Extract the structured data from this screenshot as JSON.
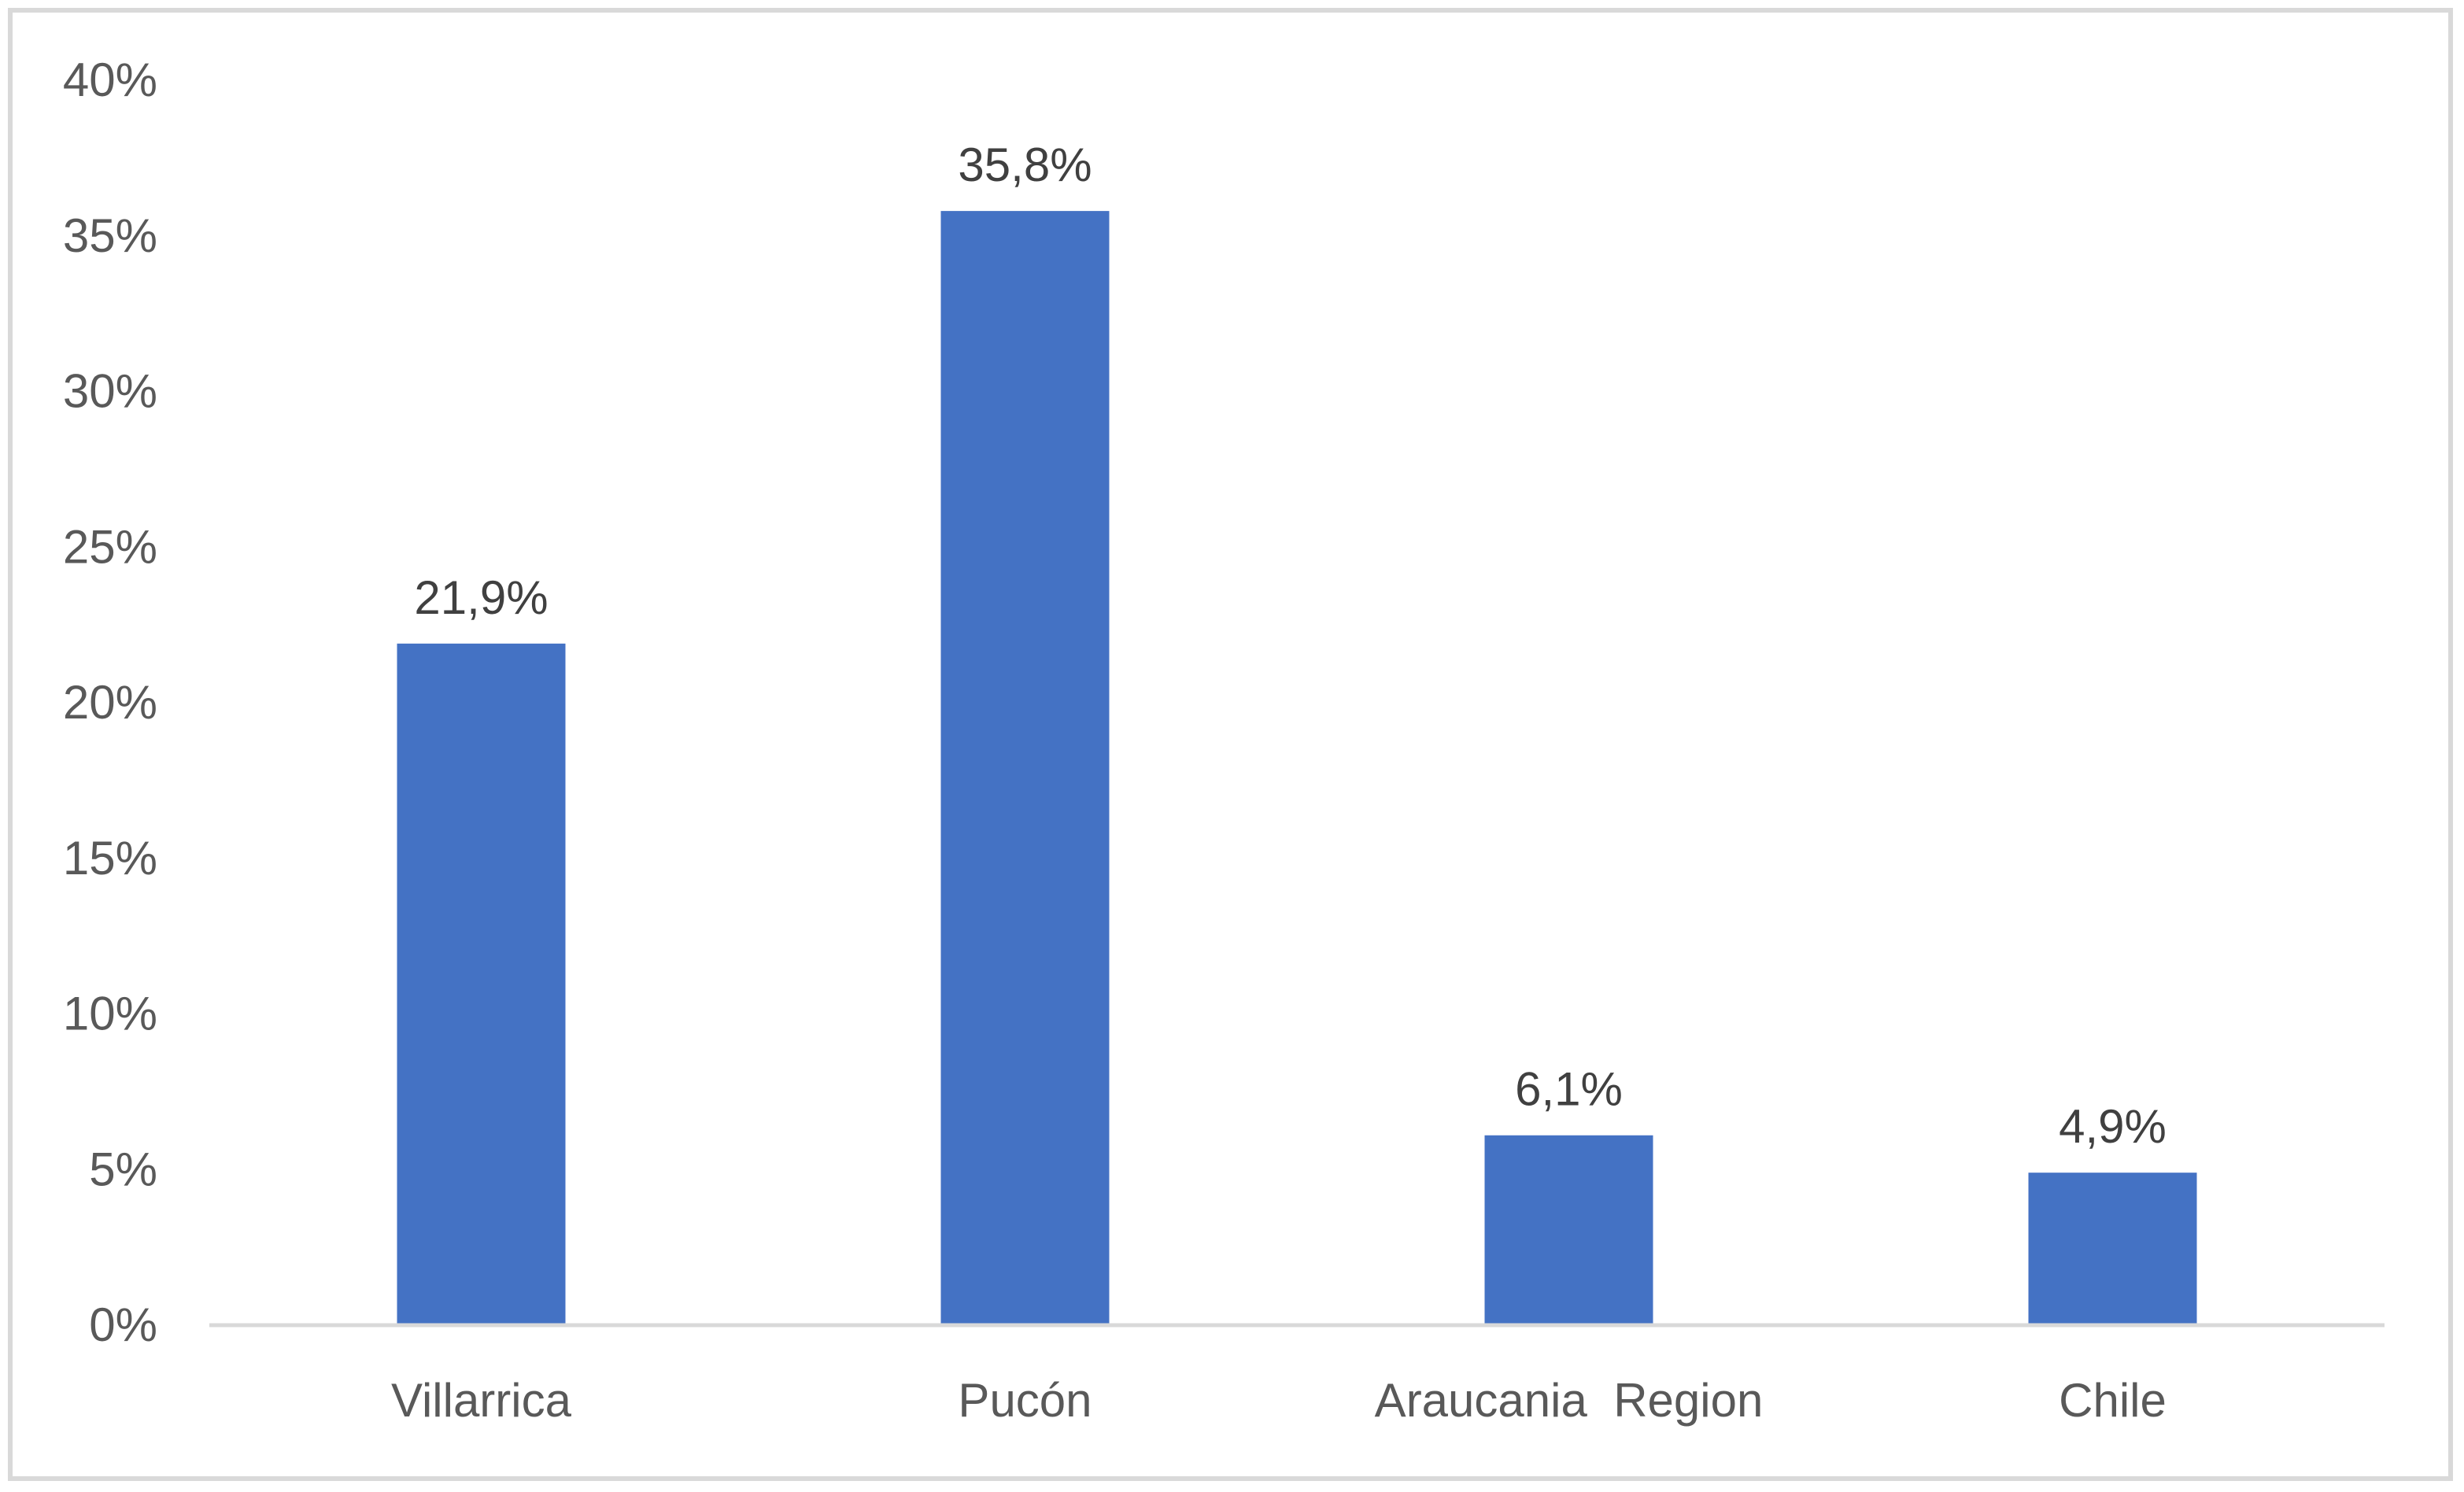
{
  "chart_data": {
    "type": "bar",
    "categories": [
      "Villarrica",
      "Pucón",
      "Araucania  Region",
      "Chile"
    ],
    "values": [
      21.9,
      35.8,
      6.1,
      4.9
    ],
    "data_labels": [
      "21,9%",
      "35,8%",
      "6,1%",
      "4,9%"
    ],
    "title": "",
    "xlabel": "",
    "ylabel": "",
    "ylim": [
      0,
      40
    ],
    "yticks": [
      0,
      5,
      10,
      15,
      20,
      25,
      30,
      35,
      40
    ],
    "ytick_labels": [
      "0%",
      "5%",
      "10%",
      "15%",
      "20%",
      "25%",
      "30%",
      "35%",
      "40%"
    ],
    "grid": false,
    "legend": "none",
    "bar_color": "#4472C4"
  }
}
